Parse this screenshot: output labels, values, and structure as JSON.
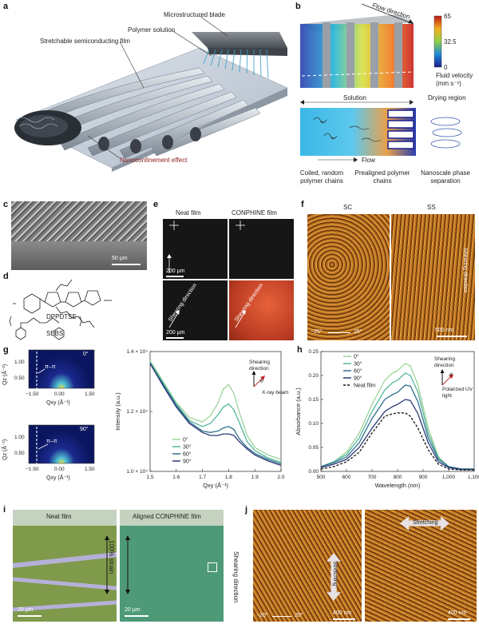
{
  "panels": {
    "a": {
      "letter": "a",
      "labels": {
        "blade": "Microstructured blade",
        "solution": "Polymer solution",
        "film": "Stretchable semiconducting film",
        "nanoconfinement": "Nanoconfinement effect"
      }
    },
    "b": {
      "letter": "b",
      "flow_direction": "Flow direction",
      "colorbar": {
        "max": "65",
        "mid": "32.5",
        "min": "0",
        "title": "Fluid velocity",
        "unit": "(mm s⁻¹)"
      },
      "solution": "Solution",
      "drying": "Drying region",
      "flow": "Flow",
      "captions": [
        "Coiled, random polymer chains",
        "Prealigned polymer chains",
        "Nanoscale phase separation"
      ]
    },
    "c": {
      "letter": "c",
      "scale": "50 μm"
    },
    "d": {
      "letter": "d",
      "mol1": "DPPDTSE",
      "mol2": "SEBS"
    },
    "e": {
      "letter": "e",
      "col1": "Neat film",
      "col2": "CONPHINE film",
      "scale": "200 μm",
      "shearing": "Shearing direction"
    },
    "f": {
      "letter": "f",
      "col1": "SC",
      "col2": "SS",
      "shearing": "Shearing direction",
      "scale": "500 nm",
      "range_low": "−25°",
      "range_high": "25°"
    },
    "g": {
      "letter": "g",
      "map_top_angle": "0°",
      "map_bottom_angle": "90°",
      "pi_pi": "π–π",
      "qz_label": "Qz (Å⁻¹)",
      "qxy_label": "Qxy (Å⁻¹)",
      "qz_ticks": [
        "1.00",
        "0.50"
      ],
      "qxy_ticks": [
        "−1.50",
        "0.00",
        "1.50"
      ],
      "legend_note_1": "Shearing direction",
      "legend_note_2": "X-ray beam",
      "theta": "θ"
    },
    "h": {
      "letter": "h",
      "legend_note_1": "Shearing direction",
      "legend_note_2": "Polarized UV light",
      "theta": "θ"
    },
    "i": {
      "letter": "i",
      "left_title": "Neat film",
      "right_title": "Aligned CONPHINE film",
      "strain": "100% strain",
      "scale": "20 μm",
      "shearing": "Shearing direction"
    },
    "j": {
      "letter": "j",
      "stretching": "Stretching",
      "scale": "400 nm",
      "range_low": "−20°",
      "range_high": "20°"
    }
  },
  "chart_data": [
    {
      "type": "line",
      "panel": "g",
      "xlabel": "Qxy (Å⁻¹)",
      "ylabel": "Intensity (a.u.)",
      "xlim": [
        1.5,
        2.0
      ],
      "ylim": [
        10000,
        14000
      ],
      "x_ticks": [
        "1.5",
        "1.6",
        "1.7",
        "1.8",
        "1.9",
        "2.0"
      ],
      "y_ticks": [
        "1.0 × 10⁴",
        "1.2 × 10⁴",
        "1.4 × 10⁴"
      ],
      "legend": "bottom-left",
      "x": [
        1.5,
        1.55,
        1.6,
        1.65,
        1.7,
        1.73,
        1.76,
        1.78,
        1.8,
        1.82,
        1.84,
        1.87,
        1.9,
        1.95,
        2.0
      ],
      "series": [
        {
          "name": "0°",
          "color": "#9ed39a",
          "values": [
            13700,
            13000,
            12300,
            11800,
            11650,
            11850,
            12300,
            12750,
            12900,
            12600,
            12000,
            11200,
            10800,
            10550,
            10400
          ]
        },
        {
          "name": "30°",
          "color": "#55b59d",
          "values": [
            13650,
            12950,
            12250,
            11700,
            11500,
            11600,
            11900,
            12150,
            12250,
            12050,
            11650,
            11000,
            10700,
            10450,
            10300
          ]
        },
        {
          "name": "60°",
          "color": "#2f6f8e",
          "values": [
            13600,
            12900,
            12200,
            11650,
            11350,
            11300,
            11350,
            11450,
            11500,
            11400,
            11100,
            10800,
            10600,
            10400,
            10250
          ]
        },
        {
          "name": "90°",
          "color": "#2a3a78",
          "values": [
            13600,
            12850,
            12150,
            11600,
            11300,
            11200,
            11200,
            11250,
            11250,
            11200,
            11000,
            10750,
            10550,
            10350,
            10200
          ]
        }
      ]
    },
    {
      "type": "line",
      "panel": "h",
      "xlabel": "Wavelength (nm)",
      "ylabel": "Absorbance (a.u.)",
      "xlim": [
        500,
        1100
      ],
      "ylim": [
        0,
        0.25
      ],
      "x_ticks": [
        "500",
        "600",
        "700",
        "800",
        "900",
        "1,000",
        "1,100"
      ],
      "y_ticks": [
        "0.00",
        "0.05",
        "0.10",
        "0.15",
        "0.20",
        "0.25"
      ],
      "legend": "top-left",
      "x": [
        500,
        550,
        600,
        650,
        700,
        750,
        780,
        800,
        830,
        850,
        880,
        920,
        960,
        1000,
        1050,
        1100
      ],
      "series": [
        {
          "name": "0°",
          "color": "#9ed39a",
          "dash": false,
          "values": [
            0.01,
            0.02,
            0.04,
            0.08,
            0.14,
            0.19,
            0.205,
            0.21,
            0.225,
            0.22,
            0.18,
            0.09,
            0.03,
            0.01,
            0.005,
            0.005
          ]
        },
        {
          "name": "30°",
          "color": "#55b59d",
          "dash": false,
          "values": [
            0.01,
            0.02,
            0.035,
            0.07,
            0.125,
            0.17,
            0.185,
            0.19,
            0.205,
            0.2,
            0.165,
            0.08,
            0.028,
            0.01,
            0.005,
            0.005
          ]
        },
        {
          "name": "60°",
          "color": "#2f6f8e",
          "dash": false,
          "values": [
            0.01,
            0.018,
            0.03,
            0.06,
            0.11,
            0.15,
            0.16,
            0.165,
            0.18,
            0.178,
            0.145,
            0.07,
            0.025,
            0.01,
            0.005,
            0.005
          ]
        },
        {
          "name": "90°",
          "color": "#2a3a78",
          "dash": false,
          "values": [
            0.008,
            0.015,
            0.025,
            0.05,
            0.09,
            0.125,
            0.135,
            0.14,
            0.15,
            0.148,
            0.12,
            0.06,
            0.02,
            0.008,
            0.004,
            0.004
          ]
        },
        {
          "name": "Neat film",
          "color": "#111111",
          "dash": true,
          "values": [
            0.005,
            0.01,
            0.02,
            0.04,
            0.08,
            0.115,
            0.12,
            0.122,
            0.122,
            0.115,
            0.09,
            0.045,
            0.015,
            0.005,
            0.003,
            0.003
          ]
        }
      ]
    }
  ]
}
